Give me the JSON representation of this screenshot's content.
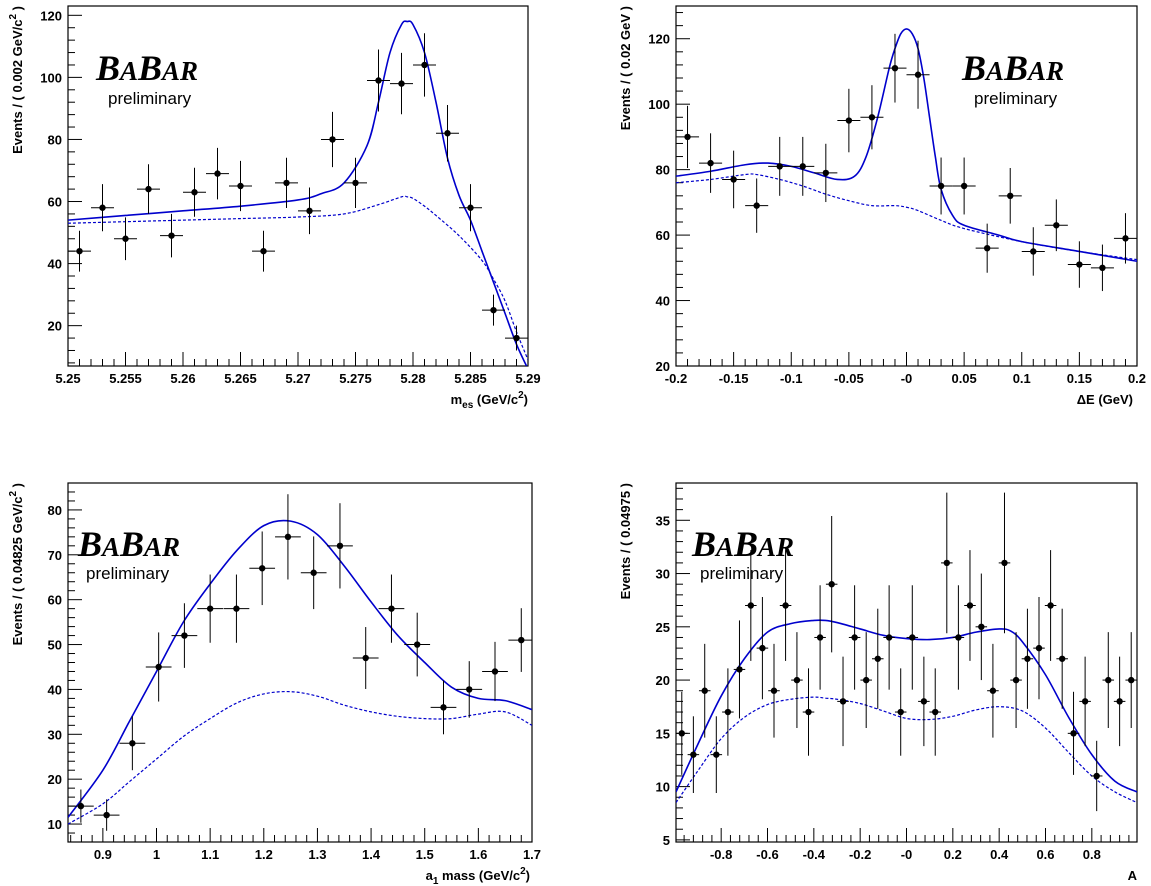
{
  "logo": {
    "big": [
      "B",
      "B"
    ],
    "small": [
      "A",
      "AR"
    ],
    "sub": "preliminary"
  },
  "style": {
    "curve_color": "#0000cc",
    "point_color": "#000000",
    "frame_color": "#000000"
  },
  "chart_data": [
    {
      "type": "scatter",
      "title": "",
      "xlabel_main": "m",
      "xlabel_sub": "es",
      "xlabel_rest": " (GeV/c",
      "xlabel_sup": "2",
      "xlabel_end": ")",
      "ylabel_main": "Events / ( 0.002 GeV/c",
      "ylabel_sup": "2",
      "ylabel_end": " )",
      "xlim": [
        5.25,
        5.29
      ],
      "ylim": [
        7,
        123
      ],
      "xticks": [
        "5.25",
        "5.255",
        "5.26",
        "5.265",
        "5.27",
        "5.275",
        "5.28",
        "5.285",
        "5.29"
      ],
      "xtick_vals": [
        5.25,
        5.255,
        5.26,
        5.265,
        5.27,
        5.275,
        5.28,
        5.285,
        5.29
      ],
      "yticks": [
        "20",
        "40",
        "60",
        "80",
        "100",
        "120"
      ],
      "ytick_vals": [
        20,
        40,
        60,
        80,
        100,
        120
      ],
      "xerr": 0.001,
      "points": [
        {
          "x": 5.251,
          "y": 44,
          "e": 6.6
        },
        {
          "x": 5.253,
          "y": 58,
          "e": 7.6
        },
        {
          "x": 5.255,
          "y": 48,
          "e": 6.9
        },
        {
          "x": 5.257,
          "y": 64,
          "e": 8.0
        },
        {
          "x": 5.259,
          "y": 49,
          "e": 7.0
        },
        {
          "x": 5.261,
          "y": 63,
          "e": 7.9
        },
        {
          "x": 5.263,
          "y": 69,
          "e": 8.3
        },
        {
          "x": 5.265,
          "y": 65,
          "e": 8.1
        },
        {
          "x": 5.267,
          "y": 44,
          "e": 6.6
        },
        {
          "x": 5.269,
          "y": 66,
          "e": 8.1
        },
        {
          "x": 5.271,
          "y": 57,
          "e": 7.5
        },
        {
          "x": 5.273,
          "y": 80,
          "e": 8.9
        },
        {
          "x": 5.275,
          "y": 66,
          "e": 8.1
        },
        {
          "x": 5.277,
          "y": 99,
          "e": 10.0
        },
        {
          "x": 5.279,
          "y": 98,
          "e": 9.9
        },
        {
          "x": 5.281,
          "y": 104,
          "e": 10.2
        },
        {
          "x": 5.283,
          "y": 82,
          "e": 9.1
        },
        {
          "x": 5.285,
          "y": 58,
          "e": 7.6
        },
        {
          "x": 5.287,
          "y": 25,
          "e": 5.0
        },
        {
          "x": 5.289,
          "y": 16,
          "e": 4.0
        }
      ],
      "total_curve": {
        "x": [
          5.25,
          5.255,
          5.26,
          5.265,
          5.27,
          5.272,
          5.274,
          5.276,
          5.277,
          5.278,
          5.279,
          5.2795,
          5.28,
          5.281,
          5.282,
          5.283,
          5.284,
          5.285,
          5.286,
          5.287,
          5.288,
          5.289,
          5.29
        ],
        "y": [
          54,
          55.5,
          57,
          58.5,
          60.5,
          62.5,
          66,
          78,
          92,
          108,
          117,
          118,
          117,
          108,
          92,
          74,
          62,
          54,
          44,
          34,
          24,
          14,
          6
        ]
      },
      "bkg_curve": {
        "x": [
          5.25,
          5.255,
          5.26,
          5.265,
          5.27,
          5.274,
          5.277,
          5.279,
          5.2795,
          5.28,
          5.281,
          5.282,
          5.284,
          5.286,
          5.287,
          5.288,
          5.289,
          5.29
        ],
        "y": [
          53,
          53.5,
          54,
          54.5,
          55,
          56,
          59,
          61.5,
          61.5,
          61,
          58.5,
          55.5,
          49,
          41,
          35,
          28,
          18,
          9
        ]
      }
    },
    {
      "type": "scatter",
      "title": "",
      "xlabel_main": "ΔE (GeV)",
      "xlabel_sub": "",
      "xlabel_rest": "",
      "xlabel_sup": "",
      "xlabel_end": "",
      "ylabel_main": "Events / ( 0.02 GeV )",
      "ylabel_sup": "",
      "ylabel_end": "",
      "xlim": [
        -0.2,
        0.2
      ],
      "ylim": [
        20,
        130
      ],
      "xticks": [
        "-0.2",
        "-0.15",
        "-0.1",
        "-0.05",
        "-0",
        "0.05",
        "0.1",
        "0.15",
        "0.2"
      ],
      "xtick_vals": [
        -0.2,
        -0.15,
        -0.1,
        -0.05,
        0,
        0.05,
        0.1,
        0.15,
        0.2
      ],
      "yticks": [
        "20",
        "40",
        "60",
        "80",
        "100",
        "120"
      ],
      "ytick_vals": [
        20,
        40,
        60,
        80,
        100,
        120
      ],
      "xerr": 0.01,
      "points": [
        {
          "x": -0.19,
          "y": 90,
          "e": 9.5
        },
        {
          "x": -0.17,
          "y": 82,
          "e": 9.1
        },
        {
          "x": -0.15,
          "y": 77,
          "e": 8.8
        },
        {
          "x": -0.13,
          "y": 69,
          "e": 8.3
        },
        {
          "x": -0.11,
          "y": 81,
          "e": 9.0
        },
        {
          "x": -0.09,
          "y": 81,
          "e": 9.0
        },
        {
          "x": -0.07,
          "y": 79,
          "e": 8.9
        },
        {
          "x": -0.05,
          "y": 95,
          "e": 9.7
        },
        {
          "x": -0.03,
          "y": 96,
          "e": 9.8
        },
        {
          "x": -0.01,
          "y": 111,
          "e": 10.5
        },
        {
          "x": 0.01,
          "y": 109,
          "e": 10.4
        },
        {
          "x": 0.03,
          "y": 75,
          "e": 8.7
        },
        {
          "x": 0.05,
          "y": 75,
          "e": 8.7
        },
        {
          "x": 0.07,
          "y": 56,
          "e": 7.5
        },
        {
          "x": 0.09,
          "y": 72,
          "e": 8.5
        },
        {
          "x": 0.11,
          "y": 55,
          "e": 7.4
        },
        {
          "x": 0.13,
          "y": 63,
          "e": 7.9
        },
        {
          "x": 0.15,
          "y": 51,
          "e": 7.1
        },
        {
          "x": 0.17,
          "y": 50,
          "e": 7.1
        },
        {
          "x": 0.19,
          "y": 59,
          "e": 7.7
        }
      ],
      "total_curve": {
        "x": [
          -0.2,
          -0.17,
          -0.14,
          -0.12,
          -0.1,
          -0.08,
          -0.06,
          -0.045,
          -0.035,
          -0.025,
          -0.015,
          -0.01,
          -0.005,
          0,
          0.005,
          0.01,
          0.015,
          0.02,
          0.025,
          0.03,
          0.04,
          0.05,
          0.08,
          0.1,
          0.15,
          0.2
        ],
        "y": [
          78,
          79.5,
          81.5,
          82,
          81,
          79,
          77,
          78,
          84,
          96,
          111,
          117,
          121.5,
          123,
          121.5,
          117,
          108,
          96,
          84,
          74,
          66,
          63,
          60,
          58,
          55,
          52
        ]
      },
      "bkg_curve": {
        "x": [
          -0.2,
          -0.17,
          -0.14,
          -0.13,
          -0.11,
          -0.09,
          -0.07,
          -0.05,
          -0.03,
          -0.01,
          0,
          0.01,
          0.03,
          0.05,
          0.1,
          0.15,
          0.2
        ],
        "y": [
          76,
          77,
          78.5,
          78.5,
          77,
          75,
          72.5,
          70.5,
          69,
          69,
          68.5,
          67.5,
          64.5,
          62,
          58,
          55,
          52.5
        ]
      }
    },
    {
      "type": "scatter",
      "title": "",
      "xlabel_main": "a",
      "xlabel_sub": "1",
      "xlabel_rest": " mass (GeV/c",
      "xlabel_sup": "2",
      "xlabel_end": ")",
      "ylabel_main": "Events / ( 0.04825 GeV/c",
      "ylabel_sup": "2",
      "ylabel_end": " )",
      "xlim": [
        0.835,
        1.7
      ],
      "ylim": [
        6,
        86
      ],
      "xticks": [
        "0.9",
        "1",
        "1.1",
        "1.2",
        "1.3",
        "1.4",
        "1.5",
        "1.6",
        "1.7"
      ],
      "xtick_vals": [
        0.9,
        1.0,
        1.1,
        1.2,
        1.3,
        1.4,
        1.5,
        1.6,
        1.7
      ],
      "yticks": [
        "10",
        "20",
        "30",
        "40",
        "50",
        "60",
        "70",
        "80"
      ],
      "ytick_vals": [
        10,
        20,
        30,
        40,
        50,
        60,
        70,
        80
      ],
      "xerr": 0.024,
      "points": [
        {
          "x": 0.859,
          "y": 14,
          "e": 3.7
        },
        {
          "x": 0.907,
          "y": 12,
          "e": 3.5
        },
        {
          "x": 0.955,
          "y": 28,
          "e": 6.0
        },
        {
          "x": 1.004,
          "y": 45,
          "e": 7.7
        },
        {
          "x": 1.052,
          "y": 52,
          "e": 7.2
        },
        {
          "x": 1.1,
          "y": 58,
          "e": 7.6
        },
        {
          "x": 1.149,
          "y": 58,
          "e": 7.6
        },
        {
          "x": 1.197,
          "y": 67,
          "e": 8.2
        },
        {
          "x": 1.245,
          "y": 74,
          "e": 9.5
        },
        {
          "x": 1.293,
          "y": 66,
          "e": 8.1
        },
        {
          "x": 1.342,
          "y": 72,
          "e": 9.5
        },
        {
          "x": 1.39,
          "y": 47,
          "e": 6.9
        },
        {
          "x": 1.438,
          "y": 58,
          "e": 7.6
        },
        {
          "x": 1.486,
          "y": 50,
          "e": 7.1
        },
        {
          "x": 1.535,
          "y": 36,
          "e": 6.0
        },
        {
          "x": 1.583,
          "y": 40,
          "e": 6.3
        },
        {
          "x": 1.631,
          "y": 44,
          "e": 6.6
        },
        {
          "x": 1.68,
          "y": 51,
          "e": 7.1
        }
      ],
      "total_curve": {
        "x": [
          0.835,
          0.9,
          0.95,
          1.0,
          1.05,
          1.1,
          1.15,
          1.2,
          1.25,
          1.3,
          1.35,
          1.4,
          1.45,
          1.5,
          1.55,
          1.6,
          1.65,
          1.7
        ],
        "y": [
          11.5,
          22,
          33,
          44,
          55,
          63.5,
          71,
          76.5,
          77.5,
          74.5,
          67.5,
          59.5,
          52,
          46,
          40.5,
          38,
          37.5,
          35.5
        ]
      },
      "bkg_curve": {
        "x": [
          0.835,
          0.9,
          0.95,
          1.0,
          1.05,
          1.1,
          1.15,
          1.2,
          1.25,
          1.3,
          1.35,
          1.4,
          1.45,
          1.5,
          1.55,
          1.6,
          1.65,
          1.7
        ],
        "y": [
          10,
          14.5,
          19.5,
          24.5,
          29.5,
          33.5,
          37,
          39,
          39.5,
          38.5,
          36.5,
          35,
          34,
          33.5,
          33.5,
          34.5,
          35,
          32
        ]
      }
    },
    {
      "type": "scatter",
      "title": "",
      "xlabel_main": "A",
      "xlabel_sub": "",
      "xlabel_rest": "",
      "xlabel_sup": "",
      "xlabel_end": "",
      "ylabel_main": "Events / ( 0.04975 )",
      "ylabel_sup": "",
      "ylabel_end": "",
      "xlim": [
        -0.995,
        0.995
      ],
      "ylim": [
        4.8,
        38.5
      ],
      "xticks": [
        "-0.8",
        "-0.6",
        "-0.4",
        "-0.2",
        "-0",
        "0.2",
        "0.4",
        "0.6",
        "0.8"
      ],
      "xtick_vals": [
        -0.8,
        -0.6,
        -0.4,
        -0.2,
        0,
        0.2,
        0.4,
        0.6,
        0.8
      ],
      "yticks": [
        "5",
        "10",
        "15",
        "20",
        "25",
        "30",
        "35"
      ],
      "ytick_vals": [
        5,
        10,
        15,
        20,
        25,
        30,
        35
      ],
      "xerr": 0.0249,
      "points": [
        {
          "x": -0.97,
          "y": 15,
          "e": 3.9
        },
        {
          "x": -0.92,
          "y": 13,
          "e": 3.6
        },
        {
          "x": -0.871,
          "y": 19,
          "e": 4.4
        },
        {
          "x": -0.821,
          "y": 13,
          "e": 3.6
        },
        {
          "x": -0.771,
          "y": 17,
          "e": 4.1
        },
        {
          "x": -0.721,
          "y": 21,
          "e": 4.6
        },
        {
          "x": -0.672,
          "y": 27,
          "e": 5.2
        },
        {
          "x": -0.622,
          "y": 23,
          "e": 4.8
        },
        {
          "x": -0.572,
          "y": 19,
          "e": 4.4
        },
        {
          "x": -0.522,
          "y": 27,
          "e": 5.2
        },
        {
          "x": -0.473,
          "y": 20,
          "e": 4.5
        },
        {
          "x": -0.423,
          "y": 17,
          "e": 4.1
        },
        {
          "x": -0.373,
          "y": 24,
          "e": 4.9
        },
        {
          "x": -0.323,
          "y": 29,
          "e": 6.4
        },
        {
          "x": -0.274,
          "y": 18,
          "e": 4.2
        },
        {
          "x": -0.224,
          "y": 24,
          "e": 4.9
        },
        {
          "x": -0.174,
          "y": 20,
          "e": 4.5
        },
        {
          "x": -0.124,
          "y": 22,
          "e": 4.7
        },
        {
          "x": -0.075,
          "y": 24,
          "e": 4.9
        },
        {
          "x": -0.025,
          "y": 17,
          "e": 4.1
        },
        {
          "x": 0.025,
          "y": 24,
          "e": 4.9
        },
        {
          "x": 0.075,
          "y": 18,
          "e": 4.2
        },
        {
          "x": 0.124,
          "y": 17,
          "e": 4.1
        },
        {
          "x": 0.174,
          "y": 31,
          "e": 6.6
        },
        {
          "x": 0.224,
          "y": 24,
          "e": 4.9
        },
        {
          "x": 0.274,
          "y": 27,
          "e": 5.2
        },
        {
          "x": 0.323,
          "y": 25,
          "e": 5.0
        },
        {
          "x": 0.373,
          "y": 19,
          "e": 4.4
        },
        {
          "x": 0.423,
          "y": 31,
          "e": 6.6
        },
        {
          "x": 0.473,
          "y": 20,
          "e": 4.5
        },
        {
          "x": 0.522,
          "y": 22,
          "e": 4.7
        },
        {
          "x": 0.572,
          "y": 23,
          "e": 4.8
        },
        {
          "x": 0.622,
          "y": 27,
          "e": 5.2
        },
        {
          "x": 0.672,
          "y": 22,
          "e": 4.7
        },
        {
          "x": 0.721,
          "y": 15,
          "e": 3.9
        },
        {
          "x": 0.771,
          "y": 18,
          "e": 4.2
        },
        {
          "x": 0.821,
          "y": 11,
          "e": 3.3
        },
        {
          "x": 0.871,
          "y": 20,
          "e": 4.5
        },
        {
          "x": 0.92,
          "y": 18,
          "e": 4.2
        },
        {
          "x": 0.97,
          "y": 20,
          "e": 4.5
        }
      ],
      "total_curve": {
        "x": [
          -0.995,
          -0.9,
          -0.8,
          -0.7,
          -0.6,
          -0.5,
          -0.4,
          -0.35,
          -0.3,
          -0.2,
          -0.1,
          0,
          0.1,
          0.2,
          0.3,
          0.4,
          0.45,
          0.5,
          0.6,
          0.7,
          0.8,
          0.9,
          0.995
        ],
        "y": [
          9.5,
          14,
          18.5,
          22,
          24.5,
          25.3,
          25.6,
          25.6,
          25.4,
          24.8,
          24.2,
          23.9,
          23.8,
          24,
          24.5,
          24.8,
          24.6,
          23.6,
          20.5,
          16.5,
          13,
          10.5,
          9.5
        ]
      },
      "bkg_curve": {
        "x": [
          -0.995,
          -0.9,
          -0.8,
          -0.7,
          -0.6,
          -0.5,
          -0.4,
          -0.35,
          -0.3,
          -0.2,
          -0.1,
          0,
          0.1,
          0.2,
          0.3,
          0.4,
          0.5,
          0.6,
          0.7,
          0.8,
          0.9,
          0.995
        ],
        "y": [
          8.5,
          11.5,
          14.5,
          16.5,
          17.7,
          18.2,
          18.4,
          18.3,
          18.2,
          17.8,
          17.1,
          16.4,
          16.3,
          16.6,
          17.2,
          17.5,
          17.1,
          15.5,
          13.2,
          11,
          9.5,
          8.5
        ]
      }
    }
  ]
}
